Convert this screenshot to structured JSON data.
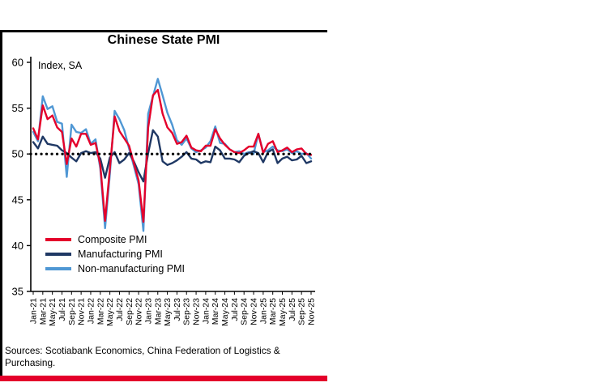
{
  "chart_data": {
    "type": "line",
    "title": "Chinese State PMI",
    "ylabel": "Index, SA",
    "ylim": [
      35,
      60
    ],
    "yticks": [
      35,
      40,
      45,
      50,
      55,
      60
    ],
    "reference_line": 50,
    "grid": false,
    "legend_position": "inside-lower-left",
    "x_labels": [
      "Jan-21",
      "Mar-21",
      "May-21",
      "Jul-21",
      "Sep-21",
      "Nov-21",
      "Jan-22",
      "Mar-22",
      "May-22",
      "Jul-22",
      "Sep-22",
      "Nov-22",
      "Jan-23",
      "Mar-23",
      "May-23",
      "Jul-23",
      "Sep-23",
      "Nov-23",
      "Jan-24",
      "Mar-24",
      "May-24",
      "Jul-24",
      "Sep-24",
      "Nov-24",
      "Jan-25",
      "Mar-25",
      "May-25",
      "Jul-25",
      "Sep-25",
      "Nov-25"
    ],
    "series": [
      {
        "name": "Composite PMI",
        "color": "#e4002b",
        "values": [
          52.8,
          51.6,
          55.3,
          53.8,
          54.2,
          52.9,
          52.4,
          48.9,
          51.7,
          50.8,
          52.2,
          52.2,
          51.0,
          51.2,
          48.8,
          42.7,
          48.4,
          54.1,
          52.5,
          51.7,
          50.9,
          49.0,
          47.1,
          42.6,
          52.9,
          56.4,
          57.0,
          54.4,
          52.9,
          52.3,
          51.1,
          51.3,
          52.0,
          50.7,
          50.4,
          50.3,
          50.9,
          50.9,
          52.7,
          51.7,
          51.0,
          50.5,
          50.2,
          50.1,
          50.4,
          50.8,
          50.8,
          52.2,
          50.1,
          51.1,
          51.4,
          50.2,
          50.4,
          50.7,
          50.2,
          50.5,
          50.6,
          50.0,
          49.9
        ]
      },
      {
        "name": "Manufacturing PMI",
        "color": "#1f3864",
        "values": [
          51.3,
          50.6,
          51.9,
          51.1,
          51.0,
          50.9,
          50.4,
          50.1,
          49.6,
          49.2,
          50.1,
          50.3,
          50.1,
          50.2,
          49.5,
          47.4,
          49.6,
          50.2,
          49.0,
          49.4,
          50.1,
          49.2,
          48.0,
          47.0,
          50.1,
          52.6,
          51.9,
          49.2,
          48.8,
          49.0,
          49.3,
          49.7,
          50.2,
          49.5,
          49.4,
          49.0,
          49.2,
          49.1,
          50.8,
          50.4,
          49.5,
          49.5,
          49.4,
          49.1,
          49.8,
          50.1,
          50.3,
          50.1,
          49.1,
          50.2,
          50.5,
          49.0,
          49.5,
          49.7,
          49.3,
          49.4,
          49.8,
          49.0,
          49.2
        ]
      },
      {
        "name": "Non-manufacturing PMI",
        "color": "#4f97d4",
        "values": [
          52.4,
          51.4,
          56.3,
          54.9,
          55.2,
          53.5,
          53.3,
          47.5,
          53.2,
          52.4,
          52.3,
          52.7,
          51.1,
          51.6,
          48.4,
          41.9,
          47.8,
          54.7,
          53.8,
          52.6,
          50.6,
          48.7,
          46.7,
          41.6,
          54.4,
          56.3,
          58.2,
          56.4,
          54.5,
          53.2,
          51.5,
          51.0,
          51.7,
          50.6,
          50.2,
          50.4,
          50.7,
          51.4,
          53.0,
          51.2,
          51.1,
          50.5,
          50.2,
          50.3,
          50.0,
          50.2,
          50.0,
          52.2,
          50.2,
          50.4,
          50.8,
          50.4,
          50.3,
          50.5,
          50.1,
          50.3,
          50.0,
          50.1,
          49.5
        ]
      }
    ]
  },
  "source": "Sources: Scotiabank Economics, China Federation of Logistics & Purchasing.",
  "colors": {
    "accent_bar": "#e4002b",
    "frame": "#000000",
    "background": "#ffffff",
    "reference_dots": "#000000"
  }
}
